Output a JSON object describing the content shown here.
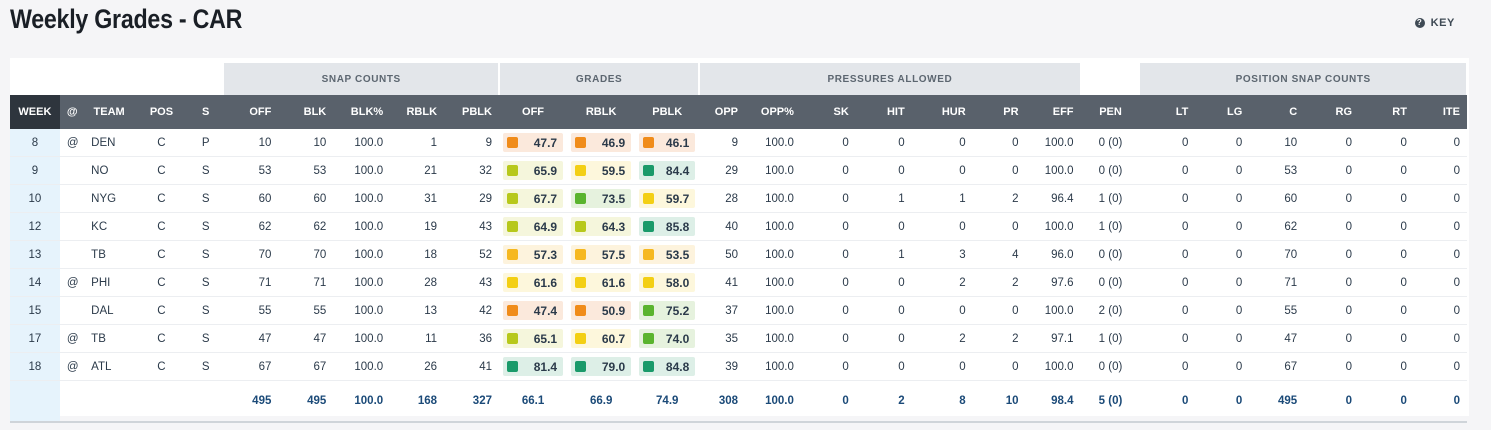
{
  "page": {
    "title": "Weekly Grades - CAR",
    "key_label": "KEY"
  },
  "groups": {
    "snap_counts": "SNAP COUNTS",
    "grades": "GRADES",
    "pressures_allowed": "PRESSURES ALLOWED",
    "position_snap_counts": "POSITION SNAP COUNTS"
  },
  "columns": [
    "WEEK",
    "@",
    "TEAM",
    "POS",
    "S",
    "OFF",
    "BLK",
    "BLK%",
    "RBLK",
    "PBLK",
    "OFF",
    "RBLK",
    "PBLK",
    "OPP",
    "OPP%",
    "SK",
    "HIT",
    "HUR",
    "PR",
    "EFF",
    "PEN",
    "LT",
    "LG",
    "C",
    "RG",
    "RT",
    "ITE"
  ],
  "grade_colors": {
    "orange": {
      "swatch": "#f08c1a",
      "bg": "#fbe9dc"
    },
    "amber": {
      "swatch": "#f6b820",
      "bg": "#fdf3dd"
    },
    "yellow": {
      "swatch": "#f3cf14",
      "bg": "#fdf7dc"
    },
    "lime": {
      "swatch": "#b7c81c",
      "bg": "#f5f6dc"
    },
    "green": {
      "swatch": "#5ab42e",
      "bg": "#e6f2de"
    },
    "teal": {
      "swatch": "#1a9a6a",
      "bg": "#ddefe7"
    }
  },
  "rows": [
    {
      "week": "8",
      "at": "@",
      "team": "DEN",
      "pos": "C",
      "s": "P",
      "off": "10",
      "blk": "10",
      "blk_pct": "100.0",
      "rblk": "1",
      "pblk": "9",
      "g_off": {
        "v": "47.7",
        "c": "orange"
      },
      "g_rblk": {
        "v": "46.9",
        "c": "orange"
      },
      "g_pblk": {
        "v": "46.1",
        "c": "orange"
      },
      "opp": "9",
      "opp_pct": "100.0",
      "sk": "0",
      "hit": "0",
      "hur": "0",
      "pr": "0",
      "eff": "100.0",
      "pen": "0 (0)",
      "lt": "0",
      "lg": "0",
      "c": "10",
      "rg": "0",
      "rt": "0",
      "ite": "0"
    },
    {
      "week": "9",
      "at": "",
      "team": "NO",
      "pos": "C",
      "s": "S",
      "off": "53",
      "blk": "53",
      "blk_pct": "100.0",
      "rblk": "21",
      "pblk": "32",
      "g_off": {
        "v": "65.9",
        "c": "lime"
      },
      "g_rblk": {
        "v": "59.5",
        "c": "yellow"
      },
      "g_pblk": {
        "v": "84.4",
        "c": "teal"
      },
      "opp": "29",
      "opp_pct": "100.0",
      "sk": "0",
      "hit": "0",
      "hur": "0",
      "pr": "0",
      "eff": "100.0",
      "pen": "0 (0)",
      "lt": "0",
      "lg": "0",
      "c": "53",
      "rg": "0",
      "rt": "0",
      "ite": "0"
    },
    {
      "week": "10",
      "at": "",
      "team": "NYG",
      "pos": "C",
      "s": "S",
      "off": "60",
      "blk": "60",
      "blk_pct": "100.0",
      "rblk": "31",
      "pblk": "29",
      "g_off": {
        "v": "67.7",
        "c": "lime"
      },
      "g_rblk": {
        "v": "73.5",
        "c": "green"
      },
      "g_pblk": {
        "v": "59.7",
        "c": "yellow"
      },
      "opp": "28",
      "opp_pct": "100.0",
      "sk": "0",
      "hit": "1",
      "hur": "1",
      "pr": "2",
      "eff": "96.4",
      "pen": "1 (0)",
      "lt": "0",
      "lg": "0",
      "c": "60",
      "rg": "0",
      "rt": "0",
      "ite": "0"
    },
    {
      "week": "12",
      "at": "",
      "team": "KC",
      "pos": "C",
      "s": "S",
      "off": "62",
      "blk": "62",
      "blk_pct": "100.0",
      "rblk": "19",
      "pblk": "43",
      "g_off": {
        "v": "64.9",
        "c": "lime"
      },
      "g_rblk": {
        "v": "64.3",
        "c": "lime"
      },
      "g_pblk": {
        "v": "85.8",
        "c": "teal"
      },
      "opp": "40",
      "opp_pct": "100.0",
      "sk": "0",
      "hit": "0",
      "hur": "0",
      "pr": "0",
      "eff": "100.0",
      "pen": "1 (0)",
      "lt": "0",
      "lg": "0",
      "c": "62",
      "rg": "0",
      "rt": "0",
      "ite": "0"
    },
    {
      "week": "13",
      "at": "",
      "team": "TB",
      "pos": "C",
      "s": "S",
      "off": "70",
      "blk": "70",
      "blk_pct": "100.0",
      "rblk": "18",
      "pblk": "52",
      "g_off": {
        "v": "57.3",
        "c": "amber"
      },
      "g_rblk": {
        "v": "57.5",
        "c": "amber"
      },
      "g_pblk": {
        "v": "53.5",
        "c": "amber"
      },
      "opp": "50",
      "opp_pct": "100.0",
      "sk": "0",
      "hit": "1",
      "hur": "3",
      "pr": "4",
      "eff": "96.0",
      "pen": "0 (0)",
      "lt": "0",
      "lg": "0",
      "c": "70",
      "rg": "0",
      "rt": "0",
      "ite": "0"
    },
    {
      "week": "14",
      "at": "@",
      "team": "PHI",
      "pos": "C",
      "s": "S",
      "off": "71",
      "blk": "71",
      "blk_pct": "100.0",
      "rblk": "28",
      "pblk": "43",
      "g_off": {
        "v": "61.6",
        "c": "yellow"
      },
      "g_rblk": {
        "v": "61.6",
        "c": "yellow"
      },
      "g_pblk": {
        "v": "58.0",
        "c": "yellow"
      },
      "opp": "41",
      "opp_pct": "100.0",
      "sk": "0",
      "hit": "0",
      "hur": "2",
      "pr": "2",
      "eff": "97.6",
      "pen": "0 (0)",
      "lt": "0",
      "lg": "0",
      "c": "71",
      "rg": "0",
      "rt": "0",
      "ite": "0"
    },
    {
      "week": "15",
      "at": "",
      "team": "DAL",
      "pos": "C",
      "s": "S",
      "off": "55",
      "blk": "55",
      "blk_pct": "100.0",
      "rblk": "13",
      "pblk": "42",
      "g_off": {
        "v": "47.4",
        "c": "orange"
      },
      "g_rblk": {
        "v": "50.9",
        "c": "orange"
      },
      "g_pblk": {
        "v": "75.2",
        "c": "green"
      },
      "opp": "37",
      "opp_pct": "100.0",
      "sk": "0",
      "hit": "0",
      "hur": "0",
      "pr": "0",
      "eff": "100.0",
      "pen": "2 (0)",
      "lt": "0",
      "lg": "0",
      "c": "55",
      "rg": "0",
      "rt": "0",
      "ite": "0"
    },
    {
      "week": "17",
      "at": "@",
      "team": "TB",
      "pos": "C",
      "s": "S",
      "off": "47",
      "blk": "47",
      "blk_pct": "100.0",
      "rblk": "11",
      "pblk": "36",
      "g_off": {
        "v": "65.1",
        "c": "lime"
      },
      "g_rblk": {
        "v": "60.7",
        "c": "yellow"
      },
      "g_pblk": {
        "v": "74.0",
        "c": "green"
      },
      "opp": "35",
      "opp_pct": "100.0",
      "sk": "0",
      "hit": "0",
      "hur": "2",
      "pr": "2",
      "eff": "97.1",
      "pen": "1 (0)",
      "lt": "0",
      "lg": "0",
      "c": "47",
      "rg": "0",
      "rt": "0",
      "ite": "0"
    },
    {
      "week": "18",
      "at": "@",
      "team": "ATL",
      "pos": "C",
      "s": "S",
      "off": "67",
      "blk": "67",
      "blk_pct": "100.0",
      "rblk": "26",
      "pblk": "41",
      "g_off": {
        "v": "81.4",
        "c": "teal"
      },
      "g_rblk": {
        "v": "79.0",
        "c": "teal"
      },
      "g_pblk": {
        "v": "84.8",
        "c": "teal"
      },
      "opp": "39",
      "opp_pct": "100.0",
      "sk": "0",
      "hit": "0",
      "hur": "0",
      "pr": "0",
      "eff": "100.0",
      "pen": "0 (0)",
      "lt": "0",
      "lg": "0",
      "c": "67",
      "rg": "0",
      "rt": "0",
      "ite": "0"
    }
  ],
  "totals": {
    "off": "495",
    "blk": "495",
    "blk_pct": "100.0",
    "rblk": "168",
    "pblk": "327",
    "g_off": "66.1",
    "g_rblk": "66.9",
    "g_pblk": "74.9",
    "opp": "308",
    "opp_pct": "100.0",
    "sk": "0",
    "hit": "2",
    "hur": "8",
    "pr": "10",
    "eff": "98.4",
    "pen": "5 (0)",
    "lt": "0",
    "lg": "0",
    "c": "495",
    "rg": "0",
    "rt": "0",
    "ite": "0"
  }
}
